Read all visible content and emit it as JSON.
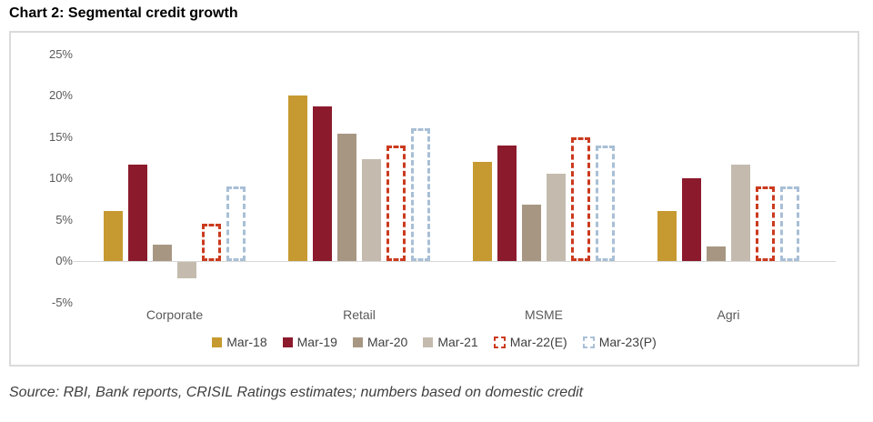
{
  "title": "Chart 2: Segmental credit growth",
  "source": "Source: RBI, Bank reports, CRISIL Ratings estimates; numbers based on domestic credit",
  "colors": {
    "mar18": "#C69A31",
    "mar19": "#8C1A2D",
    "mar20": "#A79782",
    "mar21": "#C4BBAE",
    "mar22e": "#CB3A1E",
    "mar23p": "#A8BFD6",
    "axis_text": "#595959",
    "legend_text": "#404040",
    "zero_line": "#D6D6D6",
    "panel_border": "#DBDBDB"
  },
  "chart_data": {
    "type": "bar",
    "title": "Chart 2: Segmental credit growth",
    "categories": [
      "Corporate",
      "Retail",
      "MSME",
      "Agri"
    ],
    "series": [
      {
        "name": "Mar-18",
        "style": "solid",
        "color": "#C69A31",
        "values": [
          6.0,
          20.0,
          12.0,
          6.0
        ]
      },
      {
        "name": "Mar-19",
        "style": "solid",
        "color": "#8C1A2D",
        "values": [
          11.7,
          18.7,
          14.0,
          10.0
        ]
      },
      {
        "name": "Mar-20",
        "style": "solid",
        "color": "#A79782",
        "values": [
          2.0,
          15.4,
          6.8,
          1.8
        ]
      },
      {
        "name": "Mar-21",
        "style": "solid",
        "color": "#C4BBAE",
        "values": [
          -2.0,
          12.3,
          10.5,
          11.7
        ]
      },
      {
        "name": "Mar-22(E)",
        "style": "dashed",
        "color": "#CB3A1E",
        "values": [
          4.5,
          14.0,
          15.0,
          9.0
        ]
      },
      {
        "name": "Mar-23(P)",
        "style": "dashed",
        "color": "#A8BFD6",
        "values": [
          9.0,
          16.0,
          14.0,
          9.0
        ]
      }
    ],
    "xlabel": "",
    "ylabel": "",
    "y_ticks": [
      "25%",
      "20%",
      "15%",
      "10%",
      "5%",
      "0%",
      "-5%"
    ],
    "y_tick_values": [
      25,
      20,
      15,
      10,
      5,
      0,
      -5
    ],
    "ylim": [
      -5,
      25
    ],
    "unit": "%",
    "grid": false,
    "legend_position": "bottom"
  }
}
